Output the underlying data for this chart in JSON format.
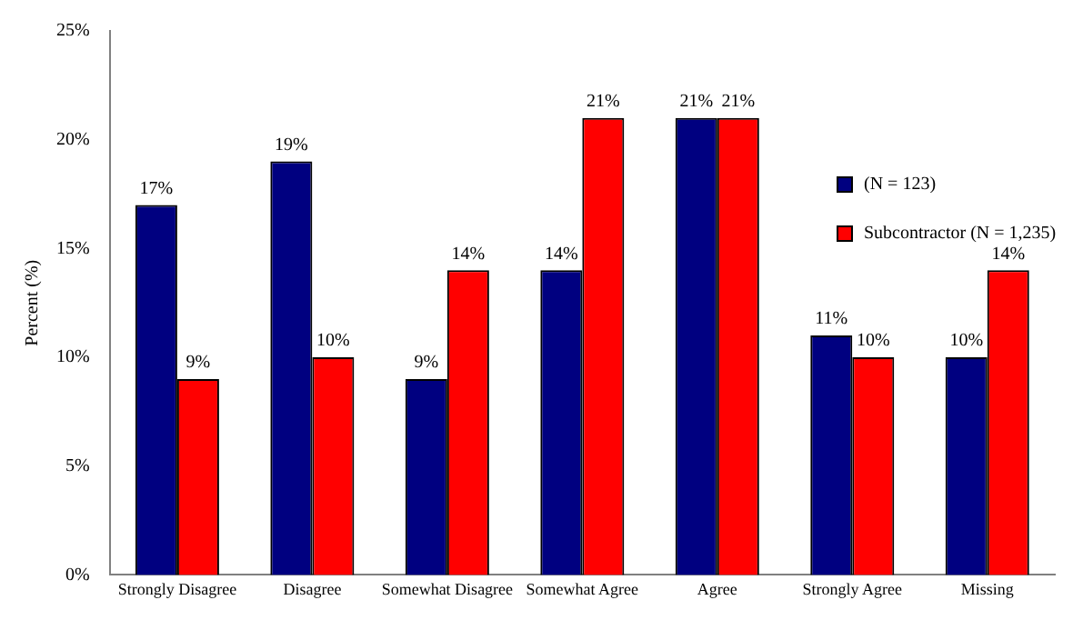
{
  "chart_data": {
    "type": "bar",
    "ylabel": "Percent (%)",
    "categories": [
      "Strongly Disagree",
      "Disagree",
      "Somewhat Disagree",
      "Somewhat Agree",
      "Agree",
      "Strongly Agree",
      "Missing"
    ],
    "series": [
      {
        "name": "(N = 123)",
        "color": "#000080",
        "values": [
          17,
          19,
          9,
          14,
          21,
          11,
          10
        ],
        "value_labels": [
          "17%",
          "19%",
          "9%",
          "14%",
          "21%",
          "11%",
          "10%"
        ]
      },
      {
        "name": "Subcontractor (N = 1,235)",
        "color": "#ff0000",
        "values": [
          9,
          10,
          14,
          21,
          21,
          10,
          14
        ],
        "value_labels": [
          "9%",
          "10%",
          "14%",
          "21%",
          "21%",
          "10%",
          "14%"
        ]
      }
    ],
    "ylim": [
      0,
      25
    ],
    "yticks": [
      {
        "value": 0,
        "label": "0%"
      },
      {
        "value": 5,
        "label": "5%"
      },
      {
        "value": 10,
        "label": "10%"
      },
      {
        "value": 15,
        "label": "15%"
      },
      {
        "value": 20,
        "label": "20%"
      },
      {
        "value": 25,
        "label": "25%"
      }
    ],
    "grid": false,
    "legend": "right"
  }
}
